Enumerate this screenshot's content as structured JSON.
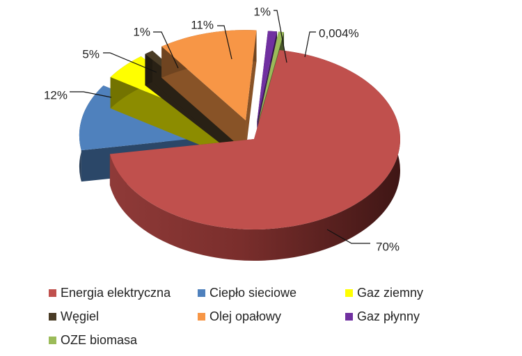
{
  "chart_data": {
    "type": "pie",
    "title": "",
    "style": "3d-exploded",
    "legend_position": "bottom",
    "categories": [
      "Energia elektryczna",
      "Ciepło sieciowe",
      "Gaz ziemny",
      "Węgiel",
      "Olej opałowy",
      "Gaz płynny",
      "OZE biomasa"
    ],
    "values": [
      70,
      12,
      5,
      1,
      11,
      1,
      0.004
    ],
    "labels": [
      "70%",
      "12%",
      "5%",
      "1%",
      "11%",
      "1%",
      "0,004%"
    ],
    "colors": [
      "#C0504D",
      "#4F81BD",
      "#FFFF00",
      "#4A3C26",
      "#F79646",
      "#7030A0",
      "#9BBB59"
    ]
  },
  "legend": {
    "rows": [
      [
        0,
        1,
        2
      ],
      [
        3,
        4,
        5
      ],
      [
        6
      ]
    ]
  }
}
